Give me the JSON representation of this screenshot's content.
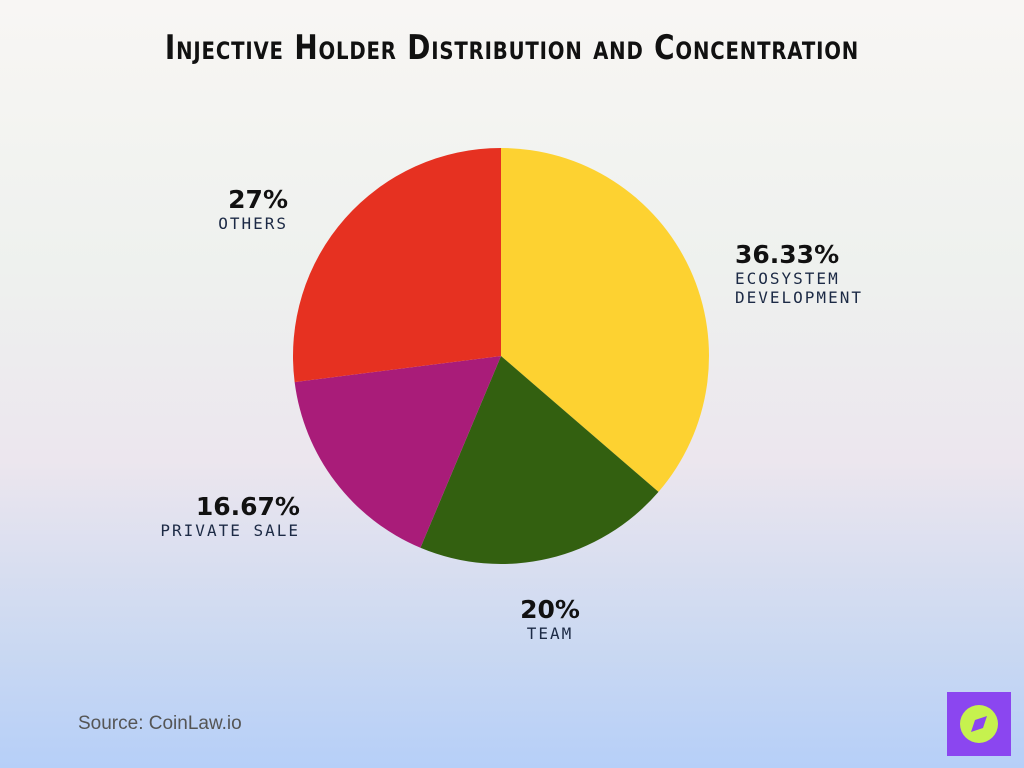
{
  "chart_data": {
    "type": "pie",
    "title": "Injective Holder Distribution and Concentration",
    "categories": [
      "ECOSYSTEM DEVELOPMENT",
      "TEAM",
      "PRIVATE SALE",
      "OTHERS"
    ],
    "values": [
      36.33,
      20,
      16.67,
      27
    ],
    "value_labels": [
      "36.33%",
      "20%",
      "16.67%",
      "27%"
    ],
    "colors": [
      "#fdd231",
      "#336010",
      "#a91c79",
      "#e63121"
    ],
    "source": "Source: CoinLaw.io"
  }
}
